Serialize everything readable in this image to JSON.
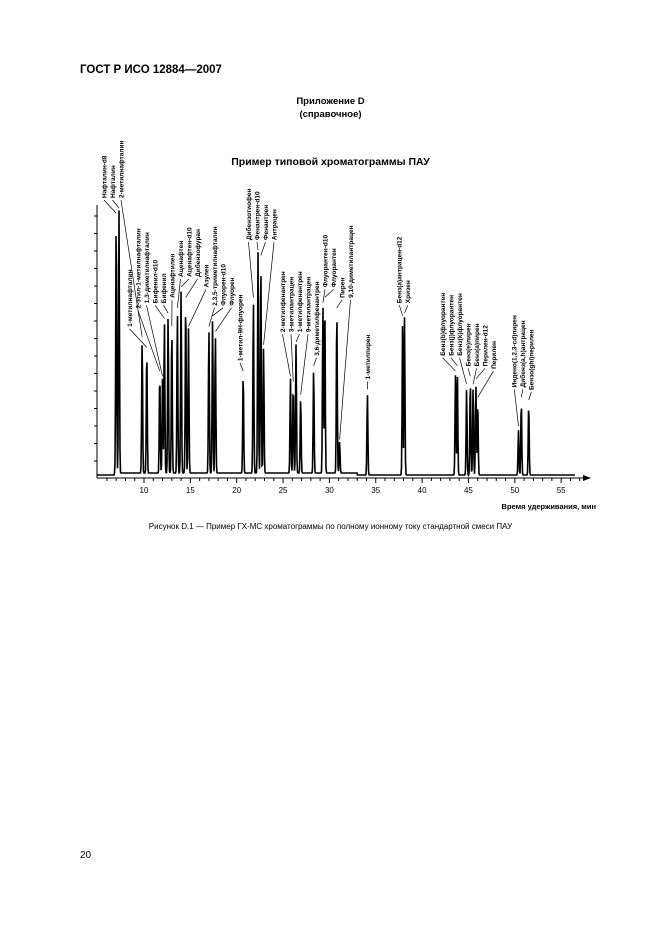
{
  "header": {
    "doc_id": "ГОСТ Р ИСО 12884—2007"
  },
  "annex": {
    "title": "Приложение D",
    "subtitle": "(справочное)"
  },
  "figure": {
    "title": "Пример типовой хроматограммы ПАУ",
    "xlabel": "Время удерживания, мин",
    "xticks": [
      10,
      15,
      20,
      25,
      30,
      35,
      40,
      45,
      50,
      55
    ],
    "xlim": [
      5,
      58
    ],
    "caption": "Рисунок D.1 — Пример ГХ-МС хроматограммы по полному ионному току стандартной смеси ПАУ",
    "peaks": [
      {
        "name": "Нафталин-d8",
        "rt": 7.0,
        "h": 98
      },
      {
        "name": "Нафталин",
        "rt": 7.3,
        "h": 100
      },
      {
        "name": "2-метилнафталин",
        "rt": 9.8,
        "h": 51
      },
      {
        "name": "1-метилнафталин",
        "rt": 10.3,
        "h": 47
      },
      {
        "name": "2-этил-1-метилнафталин",
        "rt": 11.7,
        "h": 38
      },
      {
        "name": "1,3-диметилнафталин",
        "rt": 12.0,
        "h": 36
      },
      {
        "name": "Бифенил-d10",
        "rt": 12.2,
        "h": 58
      },
      {
        "name": "Бифенил",
        "rt": 12.6,
        "h": 60
      },
      {
        "name": "Аценафтилен",
        "rt": 13.0,
        "h": 55
      },
      {
        "name": "Аценафтен",
        "rt": 13.6,
        "h": 62
      },
      {
        "name": "Аценафтен-d10",
        "rt": 14.0,
        "h": 70
      },
      {
        "name": "Дибензофуран",
        "rt": 14.5,
        "h": 66
      },
      {
        "name": "Азулен",
        "rt": 14.8,
        "h": 55
      },
      {
        "name": "2,3,5-триметилнафталин",
        "rt": 17.0,
        "h": 55
      },
      {
        "name": "Флуорен-d10",
        "rt": 17.4,
        "h": 59
      },
      {
        "name": "Флуорен",
        "rt": 17.7,
        "h": 53
      },
      {
        "name": "1-метил-9Н-флуорен",
        "rt": 20.7,
        "h": 38
      },
      {
        "name": "Дибензотиофен",
        "rt": 21.8,
        "h": 66
      },
      {
        "name": "Фенантрен-d10",
        "rt": 22.3,
        "h": 84
      },
      {
        "name": "Фенантрен",
        "rt": 22.6,
        "h": 82
      },
      {
        "name": "Антрацен",
        "rt": 22.9,
        "h": 48
      },
      {
        "name": "2-метилфенантрен",
        "rt": 25.8,
        "h": 36
      },
      {
        "name": "3-метилантрацен",
        "rt": 26.1,
        "h": 34
      },
      {
        "name": "1-метилфенантрен",
        "rt": 26.4,
        "h": 49
      },
      {
        "name": "9-метилантрацен",
        "rt": 26.9,
        "h": 29
      },
      {
        "name": "3,6-диметилфенантрен",
        "rt": 28.3,
        "h": 40
      },
      {
        "name": "Флуорантен-d10",
        "rt": 29.3,
        "h": 64
      },
      {
        "name": "Флуорантен",
        "rt": 29.5,
        "h": 66
      },
      {
        "name": "Пирен",
        "rt": 30.8,
        "h": 62
      },
      {
        "name": "9,10-диметилантрацен",
        "rt": 31.1,
        "h": 12
      },
      {
        "name": "1-метилпирен",
        "rt": 34.1,
        "h": 31
      },
      {
        "name": "Бенз(а)антрацен-d12",
        "rt": 37.9,
        "h": 59
      },
      {
        "name": "Хризен",
        "rt": 38.1,
        "h": 60
      },
      {
        "name": "Бенз(b)флуорантен",
        "rt": 43.6,
        "h": 38
      },
      {
        "name": "Бенз(j)флуорантен",
        "rt": 43.8,
        "h": 40
      },
      {
        "name": "Бенз(k)флуорантен",
        "rt": 44.8,
        "h": 33
      },
      {
        "name": "Бенз(e)пирен",
        "rt": 45.2,
        "h": 36
      },
      {
        "name": "Бенз(а)пирен",
        "rt": 45.5,
        "h": 33
      },
      {
        "name": "Перилен-d12",
        "rt": 45.8,
        "h": 35
      },
      {
        "name": "Перилен",
        "rt": 46.0,
        "h": 28
      },
      {
        "name": "Индено(1,2,3-cd)пирен",
        "rt": 50.4,
        "h": 17
      },
      {
        "name": "Дибенз(a,h)антрацен",
        "rt": 50.7,
        "h": 28
      },
      {
        "name": "Бензо(ghi)перилен",
        "rt": 51.5,
        "h": 27
      }
    ]
  },
  "page_number": "20"
}
